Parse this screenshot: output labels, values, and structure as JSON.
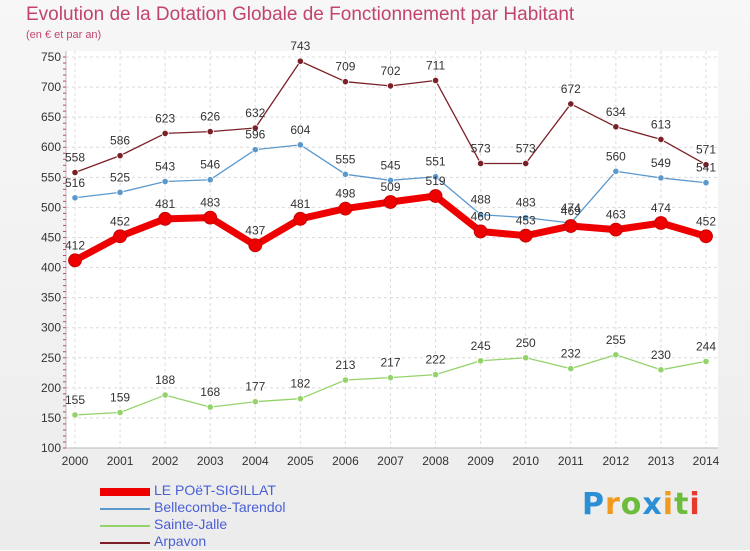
{
  "chart_data": {
    "type": "line",
    "title": "Evolution de la Dotation Globale de Fonctionnement par Habitant",
    "subtitle": "(en € et par an)",
    "xlabel": "",
    "ylabel": "",
    "x": [
      "2000",
      "2001",
      "2002",
      "2003",
      "2004",
      "2005",
      "2006",
      "2007",
      "2008",
      "2009",
      "2010",
      "2011",
      "2012",
      "2013",
      "2014"
    ],
    "yticks": [
      100,
      150,
      200,
      250,
      300,
      350,
      400,
      450,
      500,
      550,
      600,
      650,
      700,
      750
    ],
    "ylim": [
      100,
      760
    ],
    "grid": true,
    "legend_position": "bottom-left",
    "series": [
      {
        "name": "Arpavon",
        "color": "#7b2028",
        "values": [
          558,
          586,
          623,
          626,
          632,
          743,
          709,
          702,
          711,
          573,
          573,
          672,
          634,
          613,
          571
        ]
      },
      {
        "name": "Bellecombe-Tarendol",
        "color": "#5b98cc",
        "values": [
          516,
          525,
          543,
          546,
          596,
          604,
          555,
          545,
          551,
          488,
          483,
          474,
          560,
          549,
          541
        ]
      },
      {
        "name": "LE POëT-SIGILLAT",
        "color": "#ee0000",
        "values": [
          412,
          452,
          481,
          483,
          437,
          481,
          498,
          509,
          519,
          460,
          453,
          469,
          463,
          474,
          452
        ],
        "bold": true
      },
      {
        "name": "Sainte-Jalle",
        "color": "#94d36a",
        "values": [
          155,
          159,
          188,
          168,
          177,
          182,
          213,
          217,
          222,
          245,
          250,
          232,
          255,
          230,
          244
        ]
      }
    ]
  },
  "legend": [
    {
      "name": "LE POëT-SIGILLAT",
      "color": "#ee0000"
    },
    {
      "name": "Bellecombe-Tarendol",
      "color": "#5b98cc"
    },
    {
      "name": "Sainte-Jalle",
      "color": "#94d36a"
    },
    {
      "name": "Arpavon",
      "color": "#7b2028"
    }
  ],
  "logo": {
    "letters": [
      "P",
      "r",
      "o",
      "x",
      "i",
      "t",
      "i"
    ],
    "colors": [
      "#2b8fd6",
      "#f29a1f",
      "#6cbd3c",
      "#2b8fd6",
      "#f29a1f",
      "#6cbd3c",
      "#e63a2e"
    ]
  }
}
